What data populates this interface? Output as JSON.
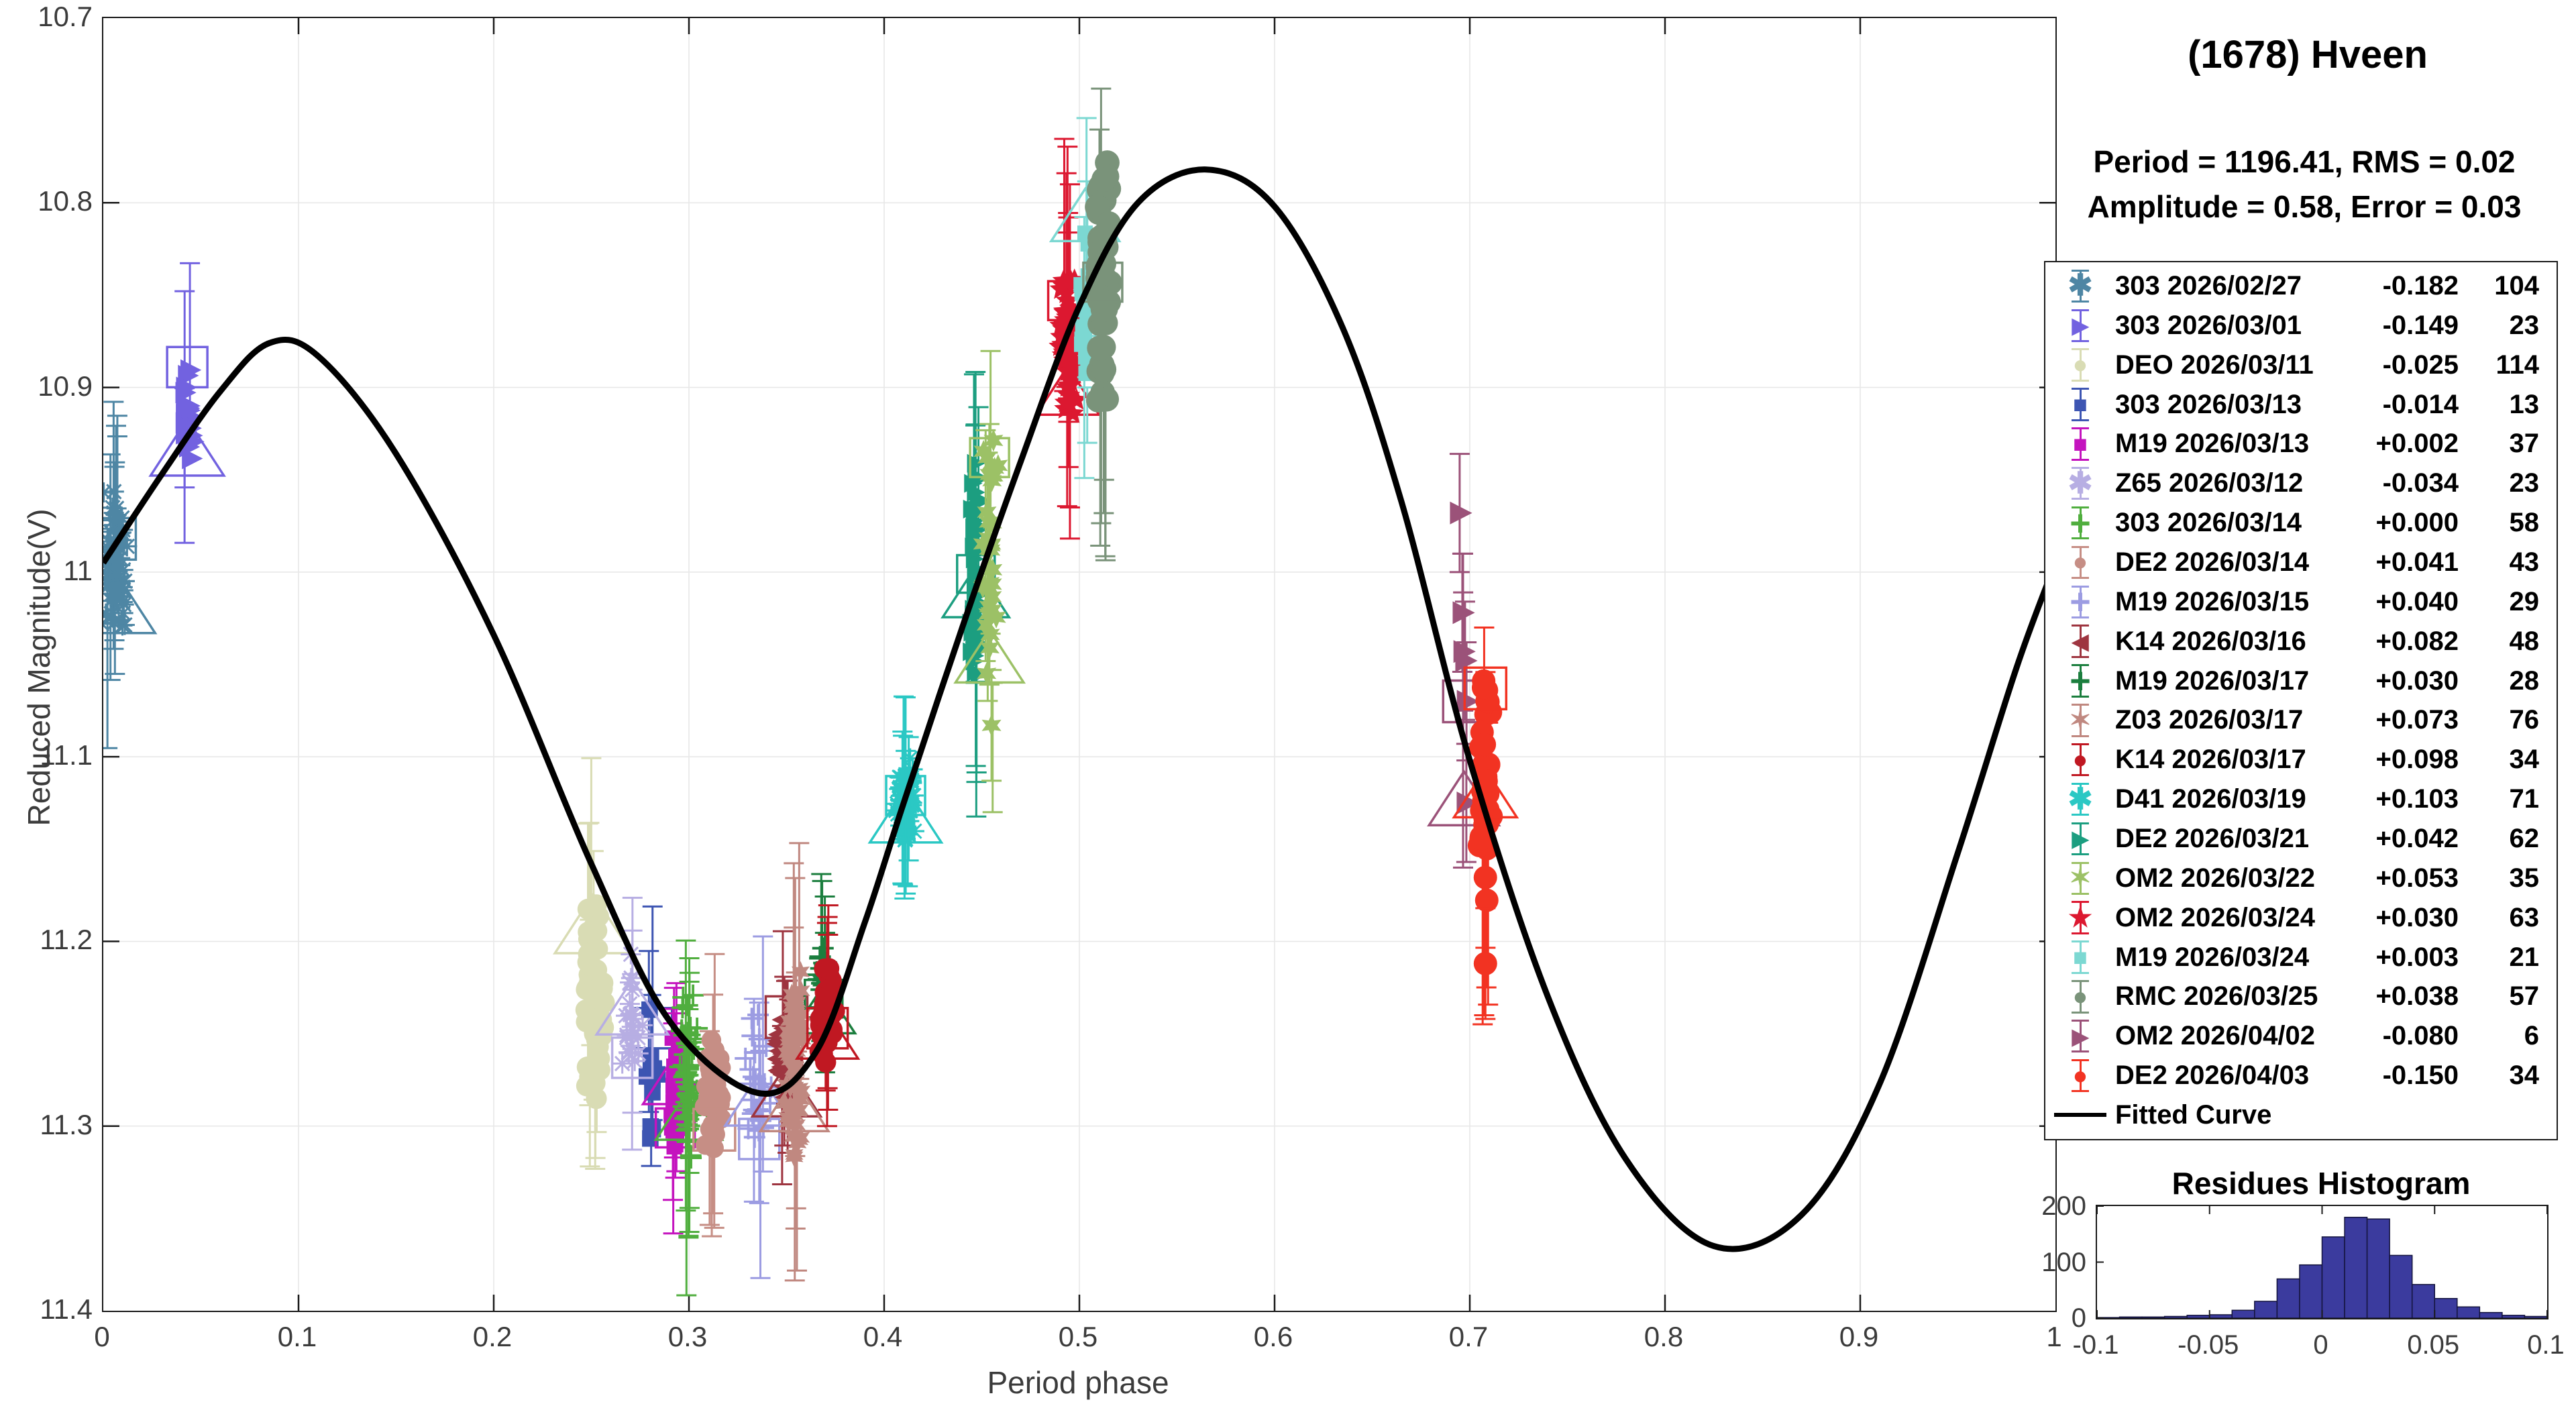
{
  "title": "(1678) Hveen",
  "params": {
    "line1": "Period =  1196.41, RMS = 0.02",
    "line2": "Amplitude = 0.58, Error = 0.03"
  },
  "legend": {
    "fitted_label": "Fitted Curve"
  },
  "chart_data": {
    "type": "scatter",
    "title": "(1678) Hveen",
    "main": {
      "xlabel": "Period phase",
      "ylabel": "Reduced Magnitude(V)",
      "xlim": [
        0,
        1
      ],
      "ylim": [
        10.7,
        11.4
      ],
      "y_axis_direction": "reversed (brighter up)",
      "grid": true,
      "x_ticks": [
        "0",
        "0.1",
        "0.2",
        "0.3",
        "0.4",
        "0.5",
        "0.6",
        "0.7",
        "0.8",
        "0.9",
        "1"
      ],
      "y_ticks": [
        "10.7",
        "10.8",
        "10.9",
        "11",
        "11.1",
        "11.2",
        "11.3",
        "11.4"
      ],
      "fitted_curve_color": "#000000",
      "fitted_curve": [
        [
          0.0,
          10.995
        ],
        [
          0.03,
          10.947
        ],
        [
          0.06,
          10.902
        ],
        [
          0.085,
          10.876
        ],
        [
          0.11,
          10.883
        ],
        [
          0.15,
          10.936
        ],
        [
          0.2,
          11.034
        ],
        [
          0.25,
          11.158
        ],
        [
          0.29,
          11.243
        ],
        [
          0.335,
          11.282
        ],
        [
          0.365,
          11.26
        ],
        [
          0.39,
          11.19
        ],
        [
          0.41,
          11.125
        ],
        [
          0.44,
          11.03
        ],
        [
          0.47,
          10.94
        ],
        [
          0.5,
          10.856
        ],
        [
          0.53,
          10.8
        ],
        [
          0.565,
          10.782
        ],
        [
          0.6,
          10.802
        ],
        [
          0.635,
          10.868
        ],
        [
          0.665,
          10.962
        ],
        [
          0.7,
          11.102
        ],
        [
          0.74,
          11.23
        ],
        [
          0.78,
          11.318
        ],
        [
          0.825,
          11.365
        ],
        [
          0.87,
          11.348
        ],
        [
          0.91,
          11.277
        ],
        [
          0.95,
          11.152
        ],
        [
          0.98,
          11.052
        ],
        [
          1.0,
          10.995
        ]
      ],
      "series": [
        {
          "label": "303 2026/02/27",
          "offset": "-0.182",
          "count": 104,
          "marker": "asterisk",
          "color": "#4E86A4",
          "phase": 0.006,
          "jitter": 0.007,
          "mag": [
            10.948,
            11.038
          ],
          "size": 15,
          "outlines": [
            {
              "shape": "square",
              "mag": 10.982,
              "size": 62
            },
            {
              "shape": "triangle",
              "mag": 11.018,
              "size": 92
            }
          ]
        },
        {
          "label": "303 2026/03/01",
          "offset": "-0.149",
          "count": 23,
          "marker": "rtriangle",
          "color": "#7262E0",
          "phase": 0.043,
          "jitter": 0.004,
          "mag": [
            10.876,
            10.948
          ],
          "size": 16,
          "outlines": [
            {
              "shape": "square",
              "mag": 10.889,
              "size": 60
            },
            {
              "shape": "triangle",
              "mag": 10.934,
              "size": 84
            }
          ]
        },
        {
          "label": "DEO 2026/03/11",
          "offset": "-0.025",
          "count": 114,
          "marker": "circle",
          "color": "#D9DCB4",
          "phase": 0.251,
          "jitter": 0.006,
          "mag": [
            11.178,
            11.288
          ],
          "size": 17,
          "outlines": [
            {
              "shape": "triangle",
              "mag": 11.192,
              "size": 88
            }
          ]
        },
        {
          "label": "303 2026/03/13",
          "offset": "-0.014",
          "count": 13,
          "marker": "square",
          "color": "#3D55B2",
          "phase": 0.281,
          "jitter": 0.0035,
          "mag": [
            11.232,
            11.312
          ],
          "size": 15,
          "outlines": [
            {
              "shape": "square",
              "mag": 11.247,
              "size": 60
            }
          ]
        },
        {
          "label": "M19 2026/03/13",
          "offset": "+0.002",
          "count": 37,
          "marker": "square",
          "color": "#C414BE",
          "phase": 0.293,
          "jitter": 0.003,
          "mag": [
            11.245,
            11.318
          ],
          "size": 14,
          "outlines": [
            {
              "shape": "triangle",
              "mag": 11.276,
              "size": 74
            },
            {
              "shape": "square",
              "mag": 11.301,
              "size": 58
            }
          ]
        },
        {
          "label": "Z65 2026/03/12",
          "offset": "-0.034",
          "count": 23,
          "marker": "asterisk",
          "color": "#B7AEE3",
          "phase": 0.271,
          "jitter": 0.006,
          "mag": [
            11.203,
            11.28
          ],
          "size": 15,
          "outlines": [
            {
              "shape": "triangle",
              "mag": 11.237,
              "size": 82
            },
            {
              "shape": "square",
              "mag": 11.263,
              "size": 60
            }
          ]
        },
        {
          "label": "303 2026/03/14",
          "offset": "+0.000",
          "count": 58,
          "marker": "plus",
          "color": "#50AE3E",
          "phase": 0.3,
          "jitter": 0.005,
          "mag": [
            11.222,
            11.327
          ],
          "size": 16,
          "outlines": [
            {
              "shape": "triangle",
              "mag": 11.295,
              "size": 76
            }
          ]
        },
        {
          "label": "DE2 2026/03/14",
          "offset": "+0.041",
          "count": 43,
          "marker": "circle",
          "color": "#C68E85",
          "phase": 0.313,
          "jitter": 0.006,
          "mag": [
            11.242,
            11.322
          ],
          "size": 16,
          "outlines": [
            {
              "shape": "square",
              "mag": 11.302,
              "size": 62
            }
          ]
        },
        {
          "label": "M19 2026/03/15",
          "offset": "+0.040",
          "count": 29,
          "marker": "plus",
          "color": "#9C9CE2",
          "phase": 0.336,
          "jitter": 0.008,
          "mag": [
            11.232,
            11.33
          ],
          "size": 16,
          "outlines": [
            {
              "shape": "triangle",
              "mag": 11.287,
              "size": 78
            },
            {
              "shape": "square",
              "mag": 11.307,
              "size": 60
            }
          ]
        },
        {
          "label": "K14 2026/03/16",
          "offset": "+0.082",
          "count": 48,
          "marker": "ltriangle",
          "color": "#9E3540",
          "phase": 0.35,
          "jitter": 0.005,
          "mag": [
            11.232,
            11.29
          ],
          "size": 15,
          "outlines": [
            {
              "shape": "square",
              "mag": 11.241,
              "size": 62
            },
            {
              "shape": "triangle",
              "mag": 11.282,
              "size": 78
            }
          ]
        },
        {
          "label": "M19 2026/03/17",
          "offset": "+0.030",
          "count": 28,
          "marker": "plus",
          "color": "#1B7E3E",
          "phase": 0.369,
          "jitter": 0.004,
          "mag": [
            11.19,
            11.252
          ],
          "size": 16,
          "outlines": [
            {
              "shape": "square",
              "mag": 11.231,
              "size": 56
            },
            {
              "shape": "triangle",
              "mag": 11.238,
              "size": 72
            }
          ]
        },
        {
          "label": "Z03 2026/03/17",
          "offset": "+0.073",
          "count": 76,
          "marker": "hexagram",
          "color": "#C08880",
          "phase": 0.354,
          "jitter": 0.005,
          "mag": [
            11.21,
            11.322
          ],
          "size": 15,
          "outlines": [
            {
              "shape": "triangle",
              "mag": 11.29,
              "size": 78
            }
          ]
        },
        {
          "label": "K14 2026/03/17",
          "offset": "+0.098",
          "count": 34,
          "marker": "circle",
          "color": "#C01822",
          "phase": 0.371,
          "jitter": 0.005,
          "mag": [
            11.205,
            11.27
          ],
          "size": 17,
          "outlines": [
            {
              "shape": "square",
              "mag": 11.247,
              "size": 60
            },
            {
              "shape": "triangle",
              "mag": 11.252,
              "size": 70
            }
          ],
          "stem": [
            11.19,
            11.3
          ]
        },
        {
          "label": "D41 2026/03/19",
          "offset": "+0.103",
          "count": 71,
          "marker": "asterisk",
          "color": "#2BC8C4",
          "phase": 0.411,
          "jitter": 0.005,
          "mag": [
            11.1,
            11.152
          ],
          "size": 15,
          "outlines": [
            {
              "shape": "square",
              "mag": 11.121,
              "size": 58
            },
            {
              "shape": "triangle",
              "mag": 11.133,
              "size": 82
            }
          ]
        },
        {
          "label": "DE2 2026/03/21",
          "offset": "+0.042",
          "count": 62,
          "marker": "rtriangle",
          "color": "#1C9E80",
          "phase": 0.447,
          "jitter": 0.003,
          "mag": [
            10.94,
            11.066
          ],
          "size": 14,
          "outlines": [
            {
              "shape": "square",
              "mag": 11.001,
              "size": 56
            },
            {
              "shape": "triangle",
              "mag": 11.012,
              "size": 76
            }
          ],
          "stem": [
            11.06,
            11.105
          ]
        },
        {
          "label": "OM2 2026/03/22",
          "offset": "+0.053",
          "count": 35,
          "marker": "hexagram",
          "color": "#9CC166",
          "phase": 0.454,
          "jitter": 0.005,
          "mag": [
            10.922,
            11.062
          ],
          "size": 16,
          "outlines": [
            {
              "shape": "square",
              "mag": 10.938,
              "size": 58
            },
            {
              "shape": "triangle",
              "mag": 11.047,
              "size": 78
            }
          ],
          "stem": [
            11.06,
            11.13
          ],
          "extra_points": [
            [
              0.455,
              11.083
            ]
          ]
        },
        {
          "label": "OM2 2026/03/24",
          "offset": "+0.030",
          "count": 63,
          "marker": "pentagram",
          "color": "#DC1830",
          "phase": 0.494,
          "jitter": 0.005,
          "mag": [
            10.826,
            10.93
          ],
          "size": 16,
          "outlines": [
            {
              "shape": "square",
              "mag": 10.853,
              "size": 58
            },
            {
              "shape": "triangle",
              "mag": 10.903,
              "size": 72
            }
          ],
          "stem": [
            10.79,
            10.965
          ]
        },
        {
          "label": "M19 2026/03/24",
          "offset": "+0.003",
          "count": 21,
          "marker": "square",
          "color": "#7CD8D2",
          "phase": 0.503,
          "jitter": 0.003,
          "mag": [
            10.81,
            10.906
          ],
          "size": 14,
          "outlines": [
            {
              "shape": "triangle",
              "mag": 10.808,
              "size": 78
            }
          ],
          "stem": [
            10.9,
            10.93
          ]
        },
        {
          "label": "RMC 2026/03/25",
          "offset": "+0.038",
          "count": 57,
          "marker": "circle",
          "color": "#7A937A",
          "phase": 0.512,
          "jitter": 0.004,
          "mag": [
            10.77,
            10.916
          ],
          "size": 20,
          "outlines": [
            {
              "shape": "square",
              "mag": 10.843,
              "size": 58
            }
          ],
          "stem": [
            10.91,
            10.95
          ]
        },
        {
          "label": "OM2 2026/04/02",
          "offset": "-0.080",
          "count": 6,
          "marker": "rtriangle",
          "color": "#9B5279",
          "phase": 0.697,
          "jitter": 0.002,
          "mag": [
            10.965,
            11.13
          ],
          "size": 17,
          "points": [
            [
              0.6955,
              10.968
            ],
            [
              0.696,
              11.022
            ],
            [
              0.697,
              11.043
            ],
            [
              0.6975,
              11.07
            ],
            [
              0.698,
              11.125
            ],
            [
              0.6985,
              11.048
            ]
          ],
          "outlines": [
            {
              "shape": "square",
              "mag": 11.07,
              "size": 62
            },
            {
              "shape": "triangle",
              "mag": 11.124,
              "size": 80
            }
          ],
          "stem": [
            10.99,
            11.16
          ]
        },
        {
          "label": "DE2 2026/04/03",
          "offset": "-0.150",
          "count": 34,
          "marker": "circle",
          "color": "#F23322",
          "phase": 0.708,
          "jitter": 0.004,
          "mag": [
            11.052,
            11.198
          ],
          "size": 19,
          "outlines": [
            {
              "shape": "square",
              "mag": 11.063,
              "size": 62
            },
            {
              "shape": "triangle",
              "mag": 11.121,
              "size": 72
            }
          ],
          "stem": [
            11.03,
            11.24
          ],
          "extra_points": [
            [
              0.708,
              11.212
            ]
          ]
        }
      ]
    },
    "histogram": {
      "title": "Residues Histogram",
      "type": "bar",
      "bar_color": "#3B3B9E",
      "xlim": [
        -0.1,
        0.1
      ],
      "ylim": [
        0,
        200
      ],
      "x_ticks": [
        "-0.1",
        "-0.05",
        "0",
        "0.05",
        "0.1"
      ],
      "y_ticks": [
        "0",
        "100",
        "200"
      ],
      "bin_start": -0.1,
      "bin_width": 0.01,
      "counts": [
        1,
        2,
        2,
        3,
        5,
        6,
        14,
        30,
        70,
        95,
        145,
        180,
        177,
        112,
        60,
        35,
        20,
        10,
        5,
        3
      ]
    }
  }
}
